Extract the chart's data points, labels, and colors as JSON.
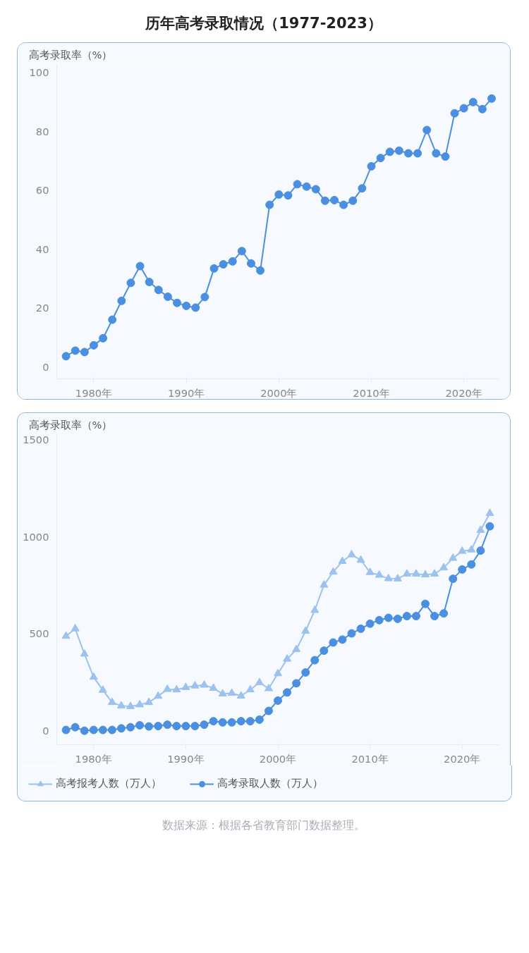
{
  "chart_data": [
    {
      "type": "line",
      "title": "历年高考录取情况（1977-2023）",
      "ylabel": "高考录取率（%）",
      "x": [
        1977,
        1978,
        1979,
        1980,
        1981,
        1982,
        1983,
        1984,
        1985,
        1986,
        1987,
        1988,
        1989,
        1990,
        1991,
        1992,
        1993,
        1994,
        1995,
        1996,
        1997,
        1998,
        1999,
        2000,
        2001,
        2002,
        2003,
        2004,
        2005,
        2006,
        2007,
        2008,
        2009,
        2010,
        2011,
        2012,
        2013,
        2014,
        2015,
        2016,
        2017,
        2018,
        2019,
        2020,
        2021,
        2022,
        2023
      ],
      "series": [
        {
          "color": "#4a8fe0",
          "values": [
            3.7,
            5.6,
            5.1,
            7.4,
            9.8,
            16.1,
            22.5,
            28.6,
            34.3,
            28.9,
            26.2,
            23.9,
            21.8,
            20.8,
            20.2,
            23.8,
            33.5,
            34.9,
            35.9,
            39.4,
            35.2,
            32.8,
            55.1,
            58.6,
            58.3,
            62.1,
            61.3,
            60.4,
            56.5,
            56.7,
            55.1,
            56.5,
            60.7,
            68.2,
            71.0,
            73.1,
            73.5,
            72.6,
            72.6,
            80.5,
            72.6,
            71.5,
            86.2,
            87.9,
            90.0,
            87.6,
            91.2
          ]
        }
      ],
      "xlim": [
        1976,
        2023.8
      ],
      "ylim": [
        -4,
        103
      ],
      "xticks": [
        {
          "value": 1980,
          "label": "1980年"
        },
        {
          "value": 1990,
          "label": "1990年"
        },
        {
          "value": 2000,
          "label": "2000年"
        },
        {
          "value": 2010,
          "label": "2010年"
        },
        {
          "value": 2020,
          "label": "2020年"
        }
      ],
      "yticks": [
        0,
        20,
        40,
        60,
        80,
        100
      ],
      "marker": "circle",
      "grid": false,
      "legend": false
    },
    {
      "type": "line",
      "ylabel": "高考录取率（%）",
      "x": [
        1977,
        1978,
        1979,
        1980,
        1981,
        1982,
        1983,
        1984,
        1985,
        1986,
        1987,
        1988,
        1989,
        1990,
        1991,
        1992,
        1993,
        1994,
        1995,
        1996,
        1997,
        1998,
        1999,
        2000,
        2001,
        2002,
        2003,
        2004,
        2005,
        2006,
        2007,
        2008,
        2009,
        2010,
        2011,
        2012,
        2013,
        2014,
        2015,
        2016,
        2017,
        2018,
        2019,
        2020,
        2021,
        2022,
        2023
      ],
      "series": [
        {
          "name": "高考报考人数（万人）",
          "color": "#9cc2ee",
          "marker": "triangle",
          "values": [
            489,
            527,
            397,
            278,
            211,
            148,
            130,
            127,
            136,
            148,
            180,
            215,
            213,
            225,
            233,
            237,
            221,
            192,
            195,
            181,
            213,
            250,
            219,
            296,
            371,
            420,
            515,
            622,
            752,
            819,
            874,
            908,
            880,
            817,
            803,
            785,
            784,
            809,
            809,
            805,
            809,
            841,
            890,
            926,
            933,
            1034,
            1121
          ]
        },
        {
          "name": "高考录取人数（万人）",
          "color": "#4a8fe0",
          "marker": "circle",
          "values": [
            6,
            20,
            2,
            6,
            6,
            6,
            14,
            20,
            30,
            24,
            26,
            33,
            26,
            26,
            26,
            33,
            51,
            45,
            45,
            51,
            51,
            59,
            104,
            157,
            199,
            246,
            302,
            365,
            414,
            456,
            471,
            503,
            527,
            553,
            571,
            583,
            578,
            592,
            592,
            655,
            592,
            606,
            784,
            832,
            858,
            929,
            1054
          ]
        }
      ],
      "xlim": [
        1976,
        2024
      ],
      "ylim": [
        -70,
        1530
      ],
      "xticks": [
        {
          "value": 1980,
          "label": "1980年"
        },
        {
          "value": 1990,
          "label": "1990年"
        },
        {
          "value": 2000,
          "label": "2000年"
        },
        {
          "value": 2010,
          "label": "2010年"
        },
        {
          "value": 2020,
          "label": "2020年"
        }
      ],
      "yticks": [
        0,
        500,
        1000,
        1500
      ],
      "grid": false,
      "legend": "bottom left",
      "annotations": [
        "数据来源：根据各省教育部门数据整理。"
      ]
    }
  ]
}
